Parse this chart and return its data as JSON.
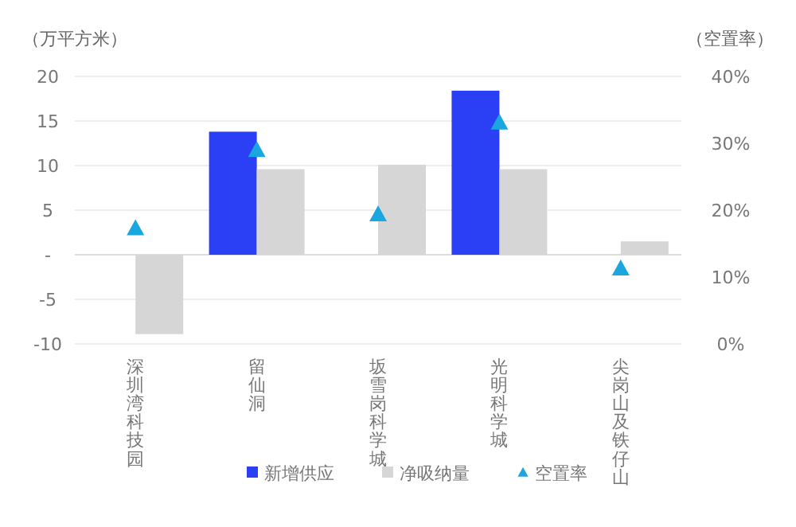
{
  "chart_data": {
    "type": "bar",
    "ylabel": "（万平方米）",
    "y2label": "（空置率）",
    "categories": [
      "深圳湾科技园",
      "留仙洞",
      "坂雪岗科学城",
      "光明科学城",
      "尖岗山及铁仔山"
    ],
    "series": [
      {
        "name": "新增供应",
        "color": "#2b3ff5",
        "values": [
          null,
          13.8,
          null,
          18.4,
          null
        ]
      },
      {
        "name": "净吸纳量",
        "color": "#d6d6d6",
        "values": [
          -8.9,
          9.6,
          10.1,
          9.6,
          1.5
        ]
      },
      {
        "name": "空置率",
        "type": "scatter",
        "axis": "y2",
        "marker": "triangle",
        "color": "#1aa7e0",
        "values": [
          17.2,
          28.9,
          19.3,
          33.0,
          11.2
        ]
      }
    ],
    "ylim": [
      -10,
      20
    ],
    "yticks": [
      -10,
      -5,
      {
        "value": 0,
        "label": "-"
      },
      5,
      10,
      15,
      20
    ],
    "y2lim": [
      0,
      40
    ],
    "y2ticks": [
      {
        "value": 0,
        "label": "0%"
      },
      {
        "value": 10,
        "label": "10%"
      },
      {
        "value": 20,
        "label": "20%"
      },
      {
        "value": 30,
        "label": "30%"
      },
      {
        "value": 40,
        "label": "40%"
      }
    ],
    "grid": "y",
    "legend": "bottom"
  }
}
